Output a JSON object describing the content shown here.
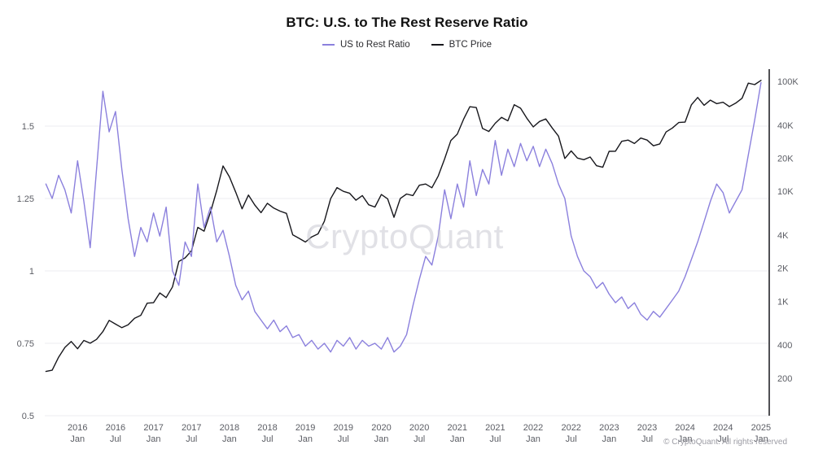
{
  "title": "BTC: U.S. to The Rest Reserve Ratio",
  "legend": {
    "items": [
      {
        "label": "US to Rest Ratio",
        "color": "#8b80dd"
      },
      {
        "label": "BTC Price",
        "color": "#17171c"
      }
    ]
  },
  "watermark": "CryptoQuant",
  "footer": {
    "copyright": "© CryptoQuant. All rights reserved"
  },
  "chart_data": {
    "type": "line",
    "title": "BTC: U.S. to The Rest Reserve Ratio",
    "grid": "horizontal",
    "legend_position": "top-center",
    "x_domain": [
      2015.61,
      2025.15
    ],
    "left_axis": {
      "title": "US to Rest Ratio",
      "scale": "linear",
      "range": [
        0.5,
        1.688
      ],
      "ticks": [
        0.5,
        0.75,
        1,
        1.25,
        1.5
      ],
      "tick_labels": [
        "0.5",
        "0.75",
        "1",
        "1.25",
        "1.5"
      ]
    },
    "right_axis": {
      "title": "BTC Price",
      "scale": "log",
      "range": [
        91,
        122700
      ],
      "ticks": [
        200,
        400,
        1000,
        2000,
        4000,
        10000,
        20000,
        40000,
        100000
      ],
      "tick_labels": [
        "200",
        "400",
        "1K",
        "2K",
        "4K",
        "10K",
        "20K",
        "40K",
        "100K"
      ]
    },
    "x_ticks": [
      {
        "year": "2016",
        "month": "Jan",
        "t": 2016.042
      },
      {
        "year": "2016",
        "month": "Jul",
        "t": 2016.542
      },
      {
        "year": "2017",
        "month": "Jan",
        "t": 2017.042
      },
      {
        "year": "2017",
        "month": "Jul",
        "t": 2017.542
      },
      {
        "year": "2018",
        "month": "Jan",
        "t": 2018.042
      },
      {
        "year": "2018",
        "month": "Jul",
        "t": 2018.542
      },
      {
        "year": "2019",
        "month": "Jan",
        "t": 2019.042
      },
      {
        "year": "2019",
        "month": "Jul",
        "t": 2019.542
      },
      {
        "year": "2020",
        "month": "Jan",
        "t": 2020.042
      },
      {
        "year": "2020",
        "month": "Jul",
        "t": 2020.542
      },
      {
        "year": "2021",
        "month": "Jan",
        "t": 2021.042
      },
      {
        "year": "2021",
        "month": "Jul",
        "t": 2021.542
      },
      {
        "year": "2022",
        "month": "Jan",
        "t": 2022.042
      },
      {
        "year": "2022",
        "month": "Jul",
        "t": 2022.542
      },
      {
        "year": "2023",
        "month": "Jan",
        "t": 2023.042
      },
      {
        "year": "2023",
        "month": "Jul",
        "t": 2023.542
      },
      {
        "year": "2024",
        "month": "Jan",
        "t": 2024.042
      },
      {
        "year": "2024",
        "month": "Jul",
        "t": 2024.542
      },
      {
        "year": "2025",
        "month": "Jan",
        "t": 2025.042
      }
    ],
    "x": [
      2015.625,
      2015.708,
      2015.792,
      2015.875,
      2015.958,
      2016.042,
      2016.125,
      2016.208,
      2016.292,
      2016.375,
      2016.458,
      2016.542,
      2016.625,
      2016.708,
      2016.792,
      2016.875,
      2016.958,
      2017.042,
      2017.125,
      2017.208,
      2017.292,
      2017.375,
      2017.458,
      2017.542,
      2017.625,
      2017.708,
      2017.792,
      2017.875,
      2017.958,
      2018.042,
      2018.125,
      2018.208,
      2018.292,
      2018.375,
      2018.458,
      2018.542,
      2018.625,
      2018.708,
      2018.792,
      2018.875,
      2018.958,
      2019.042,
      2019.125,
      2019.208,
      2019.292,
      2019.375,
      2019.458,
      2019.542,
      2019.625,
      2019.708,
      2019.792,
      2019.875,
      2019.958,
      2020.042,
      2020.125,
      2020.208,
      2020.292,
      2020.375,
      2020.458,
      2020.542,
      2020.625,
      2020.708,
      2020.792,
      2020.875,
      2020.958,
      2021.042,
      2021.125,
      2021.208,
      2021.292,
      2021.375,
      2021.458,
      2021.542,
      2021.625,
      2021.708,
      2021.792,
      2021.875,
      2021.958,
      2022.042,
      2022.125,
      2022.208,
      2022.292,
      2022.375,
      2022.458,
      2022.542,
      2022.625,
      2022.708,
      2022.792,
      2022.875,
      2022.958,
      2023.042,
      2023.125,
      2023.208,
      2023.292,
      2023.375,
      2023.458,
      2023.542,
      2023.625,
      2023.708,
      2023.792,
      2023.875,
      2023.958,
      2024.042,
      2024.125,
      2024.208,
      2024.292,
      2024.375,
      2024.458,
      2024.542,
      2024.625,
      2024.708,
      2024.792,
      2024.875,
      2024.958,
      2025.042
    ],
    "series": [
      {
        "name": "US to Rest Ratio",
        "id": "us-to-rest-ratio",
        "axis": "left",
        "color": "#8b80dd",
        "z": 2,
        "values": [
          1.3,
          1.25,
          1.33,
          1.28,
          1.2,
          1.38,
          1.24,
          1.08,
          1.35,
          1.62,
          1.48,
          1.55,
          1.35,
          1.18,
          1.05,
          1.15,
          1.1,
          1.2,
          1.12,
          1.22,
          1.0,
          0.95,
          1.1,
          1.05,
          1.3,
          1.15,
          1.22,
          1.1,
          1.14,
          1.05,
          0.95,
          0.9,
          0.93,
          0.86,
          0.83,
          0.8,
          0.83,
          0.79,
          0.81,
          0.77,
          0.78,
          0.74,
          0.76,
          0.73,
          0.75,
          0.72,
          0.76,
          0.74,
          0.77,
          0.73,
          0.76,
          0.74,
          0.75,
          0.73,
          0.77,
          0.72,
          0.74,
          0.78,
          0.88,
          0.97,
          1.05,
          1.02,
          1.12,
          1.28,
          1.18,
          1.3,
          1.22,
          1.38,
          1.26,
          1.35,
          1.3,
          1.45,
          1.33,
          1.42,
          1.36,
          1.44,
          1.38,
          1.43,
          1.36,
          1.42,
          1.37,
          1.3,
          1.25,
          1.12,
          1.05,
          1.0,
          0.98,
          0.94,
          0.96,
          0.92,
          0.89,
          0.91,
          0.87,
          0.89,
          0.85,
          0.83,
          0.86,
          0.84,
          0.87,
          0.9,
          0.93,
          0.98,
          1.04,
          1.1,
          1.17,
          1.24,
          1.3,
          1.27,
          1.2,
          1.24,
          1.28,
          1.4,
          1.52,
          1.65
        ]
      },
      {
        "name": "BTC Price",
        "id": "btc-price",
        "axis": "right",
        "color": "#17171c",
        "z": 1,
        "values": [
          230,
          236,
          310,
          380,
          430,
          370,
          440,
          415,
          450,
          530,
          670,
          620,
          575,
          610,
          700,
          745,
          960,
          970,
          1190,
          1080,
          1350,
          2300,
          2480,
          2875,
          4700,
          4340,
          6470,
          10200,
          17000,
          13500,
          9800,
          6930,
          9240,
          7500,
          6400,
          7780,
          7030,
          6600,
          6300,
          4020,
          3740,
          3460,
          3850,
          4100,
          5350,
          8570,
          10800,
          10000,
          9600,
          8300,
          9150,
          7550,
          7190,
          9350,
          8550,
          5800,
          8620,
          9450,
          9140,
          11350,
          11650,
          10780,
          13800,
          19700,
          29000,
          33100,
          45200,
          58800,
          57750,
          37300,
          35000,
          41600,
          47100,
          43800,
          61300,
          57000,
          46200,
          38500,
          43200,
          45500,
          37700,
          31800,
          19900,
          23300,
          20050,
          19400,
          20500,
          17100,
          16550,
          23100,
          23150,
          28500,
          29250,
          27200,
          30480,
          29230,
          25930,
          26970,
          34650,
          37700,
          42270,
          42580,
          61200,
          71330,
          60640,
          67500,
          62680,
          64600,
          58970,
          63330,
          70200,
          96400,
          93400,
          102000
        ]
      }
    ]
  }
}
